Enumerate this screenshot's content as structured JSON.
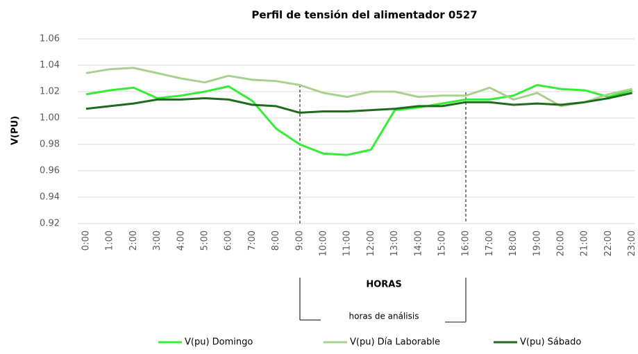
{
  "chart_data": {
    "type": "line",
    "title": "Perfil de tensión del alimentador 0527",
    "xlabel": "HORAS",
    "ylabel": "V(PU)",
    "annotation": "horas de análisis",
    "categories": [
      "0:00",
      "1:00",
      "2:00",
      "3:00",
      "4:00",
      "5:00",
      "6:00",
      "7:00",
      "8:00",
      "9:00",
      "10:00",
      "11:00",
      "12:00",
      "13:00",
      "14:00",
      "15:00",
      "16:00",
      "17:00",
      "18:00",
      "19:00",
      "20:00",
      "21:00",
      "22:00",
      "23:00"
    ],
    "series": [
      {
        "name": "V(pu) Domingo",
        "color": "#33ee33",
        "values": [
          1.018,
          1.021,
          1.023,
          1.015,
          1.017,
          1.02,
          1.024,
          1.013,
          0.992,
          0.98,
          0.973,
          0.972,
          0.976,
          1.006,
          1.008,
          1.011,
          1.014,
          1.014,
          1.017,
          1.025,
          1.022,
          1.021,
          1.016,
          1.021
        ]
      },
      {
        "name": "V(pu) Día Laborable",
        "color": "#a9d18e",
        "values": [
          1.034,
          1.037,
          1.038,
          1.034,
          1.03,
          1.027,
          1.032,
          1.029,
          1.028,
          1.025,
          1.019,
          1.016,
          1.02,
          1.02,
          1.016,
          1.017,
          1.017,
          1.023,
          1.014,
          1.019,
          1.009,
          1.012,
          1.018,
          1.022
        ]
      },
      {
        "name": "V(pu) Sábado",
        "color": "#1e6b1e",
        "values": [
          1.007,
          1.009,
          1.011,
          1.014,
          1.014,
          1.015,
          1.014,
          1.01,
          1.009,
          1.004,
          1.005,
          1.005,
          1.006,
          1.007,
          1.009,
          1.009,
          1.012,
          1.012,
          1.01,
          1.011,
          1.01,
          1.012,
          1.015,
          1.019
        ]
      }
    ],
    "ylim": [
      0.92,
      1.06
    ],
    "yticks": [
      0.92,
      0.94,
      0.96,
      0.98,
      {
        "value": 1.0,
        "label": "1.00"
      },
      1.02,
      1.04,
      1.06
    ],
    "grid": true,
    "legend": "bottom"
  }
}
